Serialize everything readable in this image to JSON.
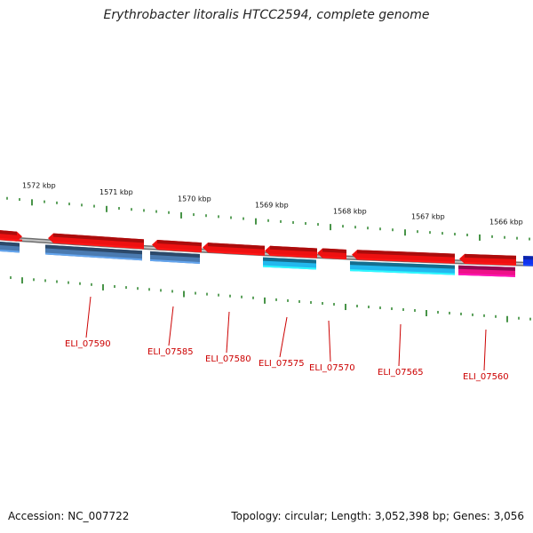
{
  "title": "Erythrobacter litoralis HTCC2594, complete genome",
  "accession": "Accession: NC_007722",
  "topology": "Topology: circular; Length: 3,052,398 bp; Genes: 3,056",
  "ruler": [
    {
      "label": "1572 kbp"
    },
    {
      "label": "1571 kbp"
    },
    {
      "label": "1570 kbp"
    },
    {
      "label": "1569 kbp"
    },
    {
      "label": "1568 kbp"
    },
    {
      "label": "1567 kbp"
    },
    {
      "label": "1566 kbp"
    }
  ],
  "genes": [
    {
      "name": "",
      "strand": "top",
      "color": "#ee1111",
      "arrow": "right"
    },
    {
      "name": "",
      "strand": "bottom",
      "color": "#4a7ab0"
    },
    {
      "name": "",
      "strand": "top",
      "color": "#ee1111",
      "arrow": "left"
    },
    {
      "name": "",
      "strand": "bottom",
      "color": "#4a7ab0"
    },
    {
      "name": "",
      "strand": "top",
      "color": "#ee1111",
      "arrow": "left"
    },
    {
      "name": "",
      "strand": "bottom",
      "color": "#4a7ab0"
    },
    {
      "name": "",
      "strand": "top",
      "color": "#ee1111",
      "arrow": "left"
    },
    {
      "name": "",
      "strand": "top",
      "color": "#ee1111",
      "arrow": "left"
    },
    {
      "name": "",
      "strand": "bottom",
      "color": "#22b8ee"
    },
    {
      "name": "",
      "strand": "top",
      "color": "#ee1111",
      "arrow": "left"
    },
    {
      "name": "",
      "strand": "top",
      "color": "#ee1111",
      "arrow": "left"
    },
    {
      "name": "",
      "strand": "bottom",
      "color": "#22b8ee"
    },
    {
      "name": "",
      "strand": "top",
      "color": "#ee1111",
      "arrow": "left"
    },
    {
      "name": "",
      "strand": "bottom",
      "color": "#ee1188"
    },
    {
      "name": "",
      "strand": "top",
      "color": "#1133ee"
    }
  ],
  "gene_labels": [
    "ELI_07590",
    "ELI_07585",
    "ELI_07580",
    "ELI_07575",
    "ELI_07570",
    "ELI_07565",
    "ELI_07560"
  ],
  "colors": {
    "label": "#cc0000",
    "tick": "#1a7a1a",
    "backbone": "#8a8a8a"
  }
}
